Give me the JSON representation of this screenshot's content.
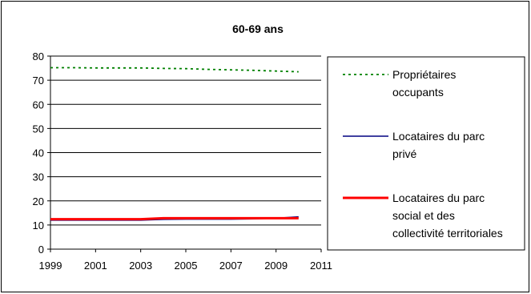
{
  "chart_data": {
    "type": "line",
    "title": "60-69 ans",
    "xlabel": "",
    "ylabel": "",
    "xlim": [
      1999,
      2011
    ],
    "ylim": [
      0,
      80
    ],
    "x_ticks": [
      "1999",
      "2001",
      "2003",
      "2005",
      "2007",
      "2009",
      "2011"
    ],
    "y_ticks": [
      "0",
      "10",
      "20",
      "30",
      "40",
      "50",
      "60",
      "70",
      "80"
    ],
    "grid": "horizontal",
    "legend_position": "right",
    "x": [
      1999,
      2000,
      2001,
      2002,
      2003,
      2004,
      2005,
      2006,
      2007,
      2008,
      2009,
      2010
    ],
    "series": [
      {
        "name_lines": [
          "Propriétaires",
          "occupants"
        ],
        "color": "#008000",
        "dash": "dotted",
        "values": [
          75.2,
          75.2,
          75.1,
          75.1,
          75.1,
          74.9,
          74.8,
          74.5,
          74.3,
          74.1,
          73.8,
          73.5
        ]
      },
      {
        "name_lines": [
          "Locataires du parc",
          "privé"
        ],
        "color": "#000080",
        "dash": "solid",
        "values": [
          12.0,
          12.0,
          12.0,
          12.0,
          12.0,
          12.3,
          12.4,
          12.4,
          12.4,
          12.5,
          12.8,
          13.4
        ]
      },
      {
        "name_lines": [
          "Locataires du parc",
          "social et des",
          "collectivité territoriales"
        ],
        "color": "#ff0000",
        "dash": "solid",
        "values": [
          12.4,
          12.4,
          12.4,
          12.4,
          12.4,
          12.8,
          12.8,
          12.8,
          12.8,
          12.8,
          12.8,
          12.8
        ]
      }
    ]
  }
}
